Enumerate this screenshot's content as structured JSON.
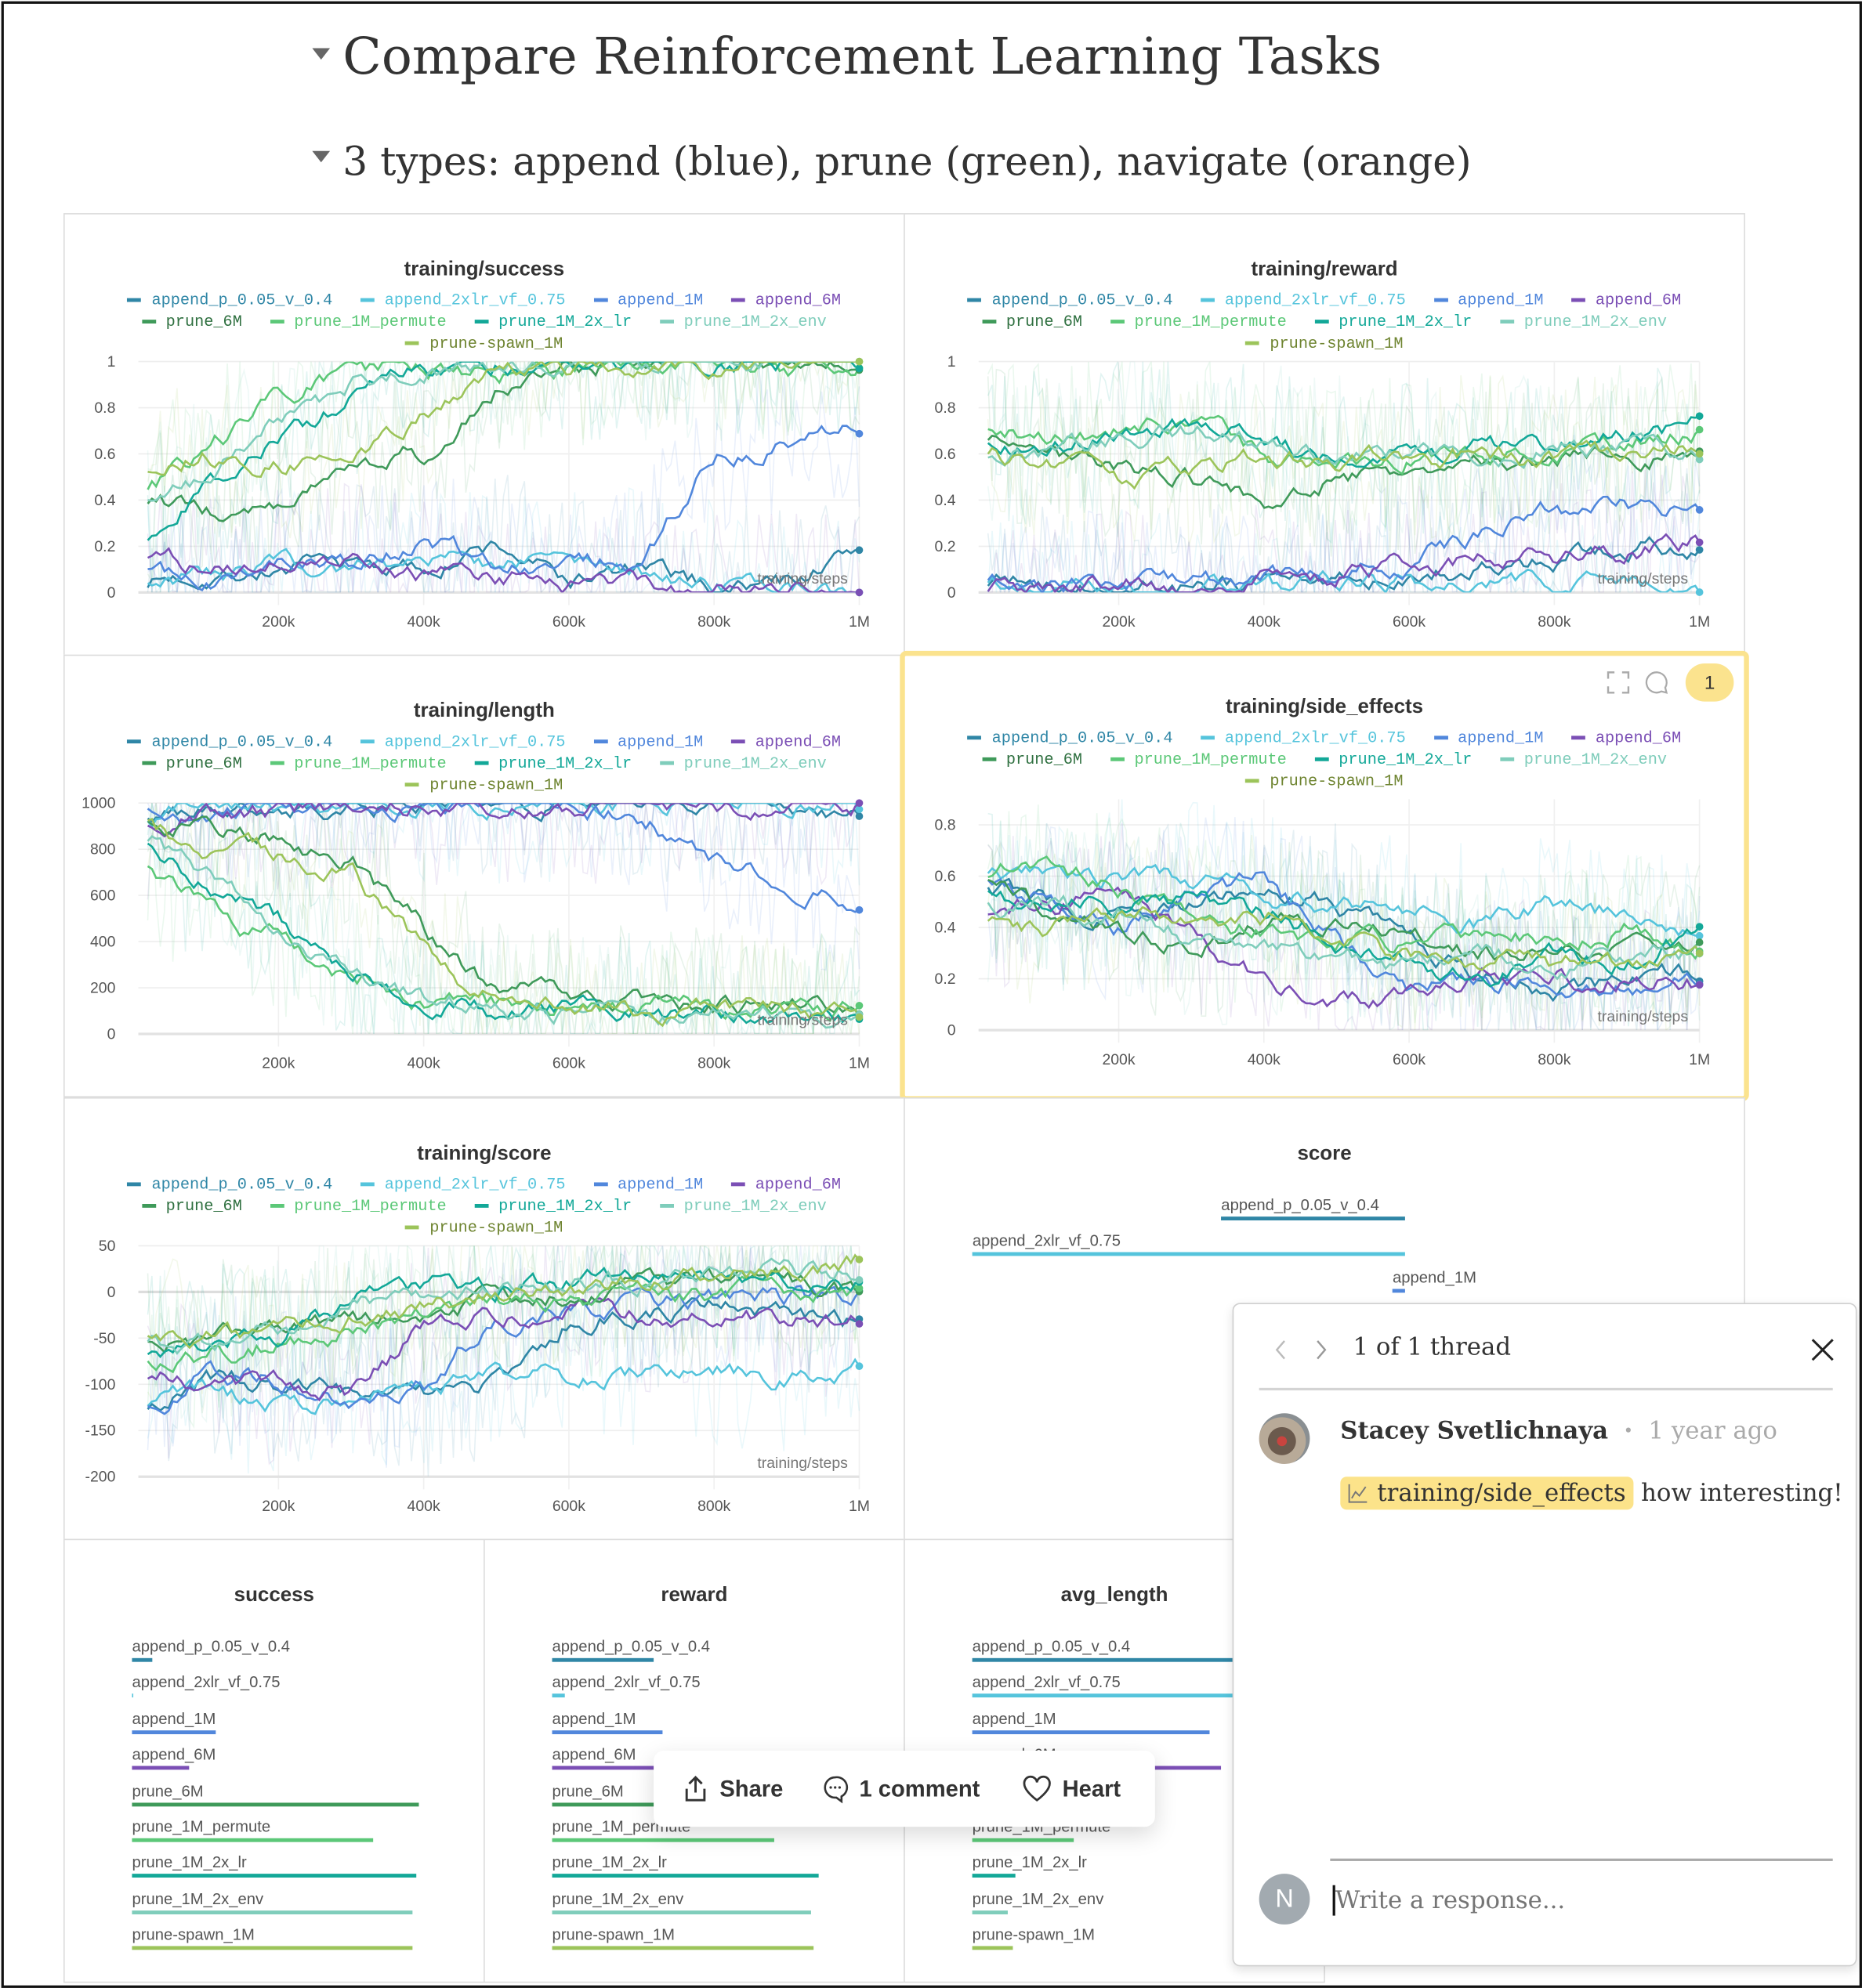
{
  "headings": {
    "h1": "Compare Reinforcement Learning Tasks",
    "h2": "3 types: append (blue), prune (green), navigate (orange)"
  },
  "series": [
    {
      "name": "append_p_0.05_v_0.4",
      "color": "#2f86a6"
    },
    {
      "name": "append_2xlr_vf_0.75",
      "color": "#55c4dc"
    },
    {
      "name": "append_1M",
      "color": "#5187dc"
    },
    {
      "name": "append_6M",
      "color": "#7b4fb5"
    },
    {
      "name": "prune_6M",
      "color": "#3f9a5a"
    },
    {
      "name": "prune_1M_permute",
      "color": "#5cc878"
    },
    {
      "name": "prune_1M_2x_lr",
      "color": "#13a898"
    },
    {
      "name": "prune_1M_2x_env",
      "color": "#7fcdbb"
    },
    {
      "name": "prune-spawn_1M",
      "color": "#9cc45a"
    }
  ],
  "chart_data": [
    {
      "type": "line",
      "title": "training/success",
      "xlabel": "training/steps",
      "x": [
        20000,
        100000,
        200000,
        300000,
        400000,
        500000,
        600000,
        700000,
        800000,
        900000,
        1000000
      ],
      "xticks": [
        200000,
        400000,
        600000,
        800000,
        1000000
      ],
      "xtick_labels": [
        "200k",
        "400k",
        "600k",
        "800k",
        "1M"
      ],
      "xlim": [
        0,
        1000000
      ],
      "ylim": [
        0,
        1
      ],
      "yticks": [
        0,
        0.2,
        0.4,
        0.6,
        0.8,
        1
      ],
      "grid": true,
      "legend": "top",
      "series": [
        {
          "name": "append_p_0.05_v_0.4",
          "values": [
            0.05,
            0.08,
            0.1,
            0.12,
            0.1,
            0.2,
            0.05,
            0.1,
            0.02,
            0.05,
            0.18
          ]
        },
        {
          "name": "append_2xlr_vf_0.75",
          "values": [
            0.05,
            0.06,
            0.1,
            0.1,
            0.15,
            0.1,
            0.15,
            0.1,
            0.05,
            0.02,
            0.01
          ]
        },
        {
          "name": "append_1M",
          "values": [
            0.08,
            0.05,
            0.12,
            0.1,
            0.2,
            0.15,
            0.1,
            0.15,
            0.6,
            0.65,
            0.7
          ]
        },
        {
          "name": "append_6M",
          "values": [
            0.15,
            0.1,
            0.12,
            0.15,
            0.07,
            0.05,
            0.03,
            0.05,
            0.01,
            0.02,
            0.02
          ]
        },
        {
          "name": "prune_6M",
          "values": [
            0.4,
            0.35,
            0.4,
            0.55,
            0.6,
            0.9,
            0.98,
            1,
            1,
            1,
            1
          ]
        },
        {
          "name": "prune_1M_permute",
          "values": [
            0.45,
            0.6,
            0.85,
            0.95,
            0.98,
            0.95,
            0.97,
            0.97,
            0.98,
            0.97,
            1
          ]
        },
        {
          "name": "prune_1M_2x_lr",
          "values": [
            0.2,
            0.45,
            0.65,
            0.85,
            0.98,
            1,
            1,
            1,
            1,
            1,
            1
          ]
        },
        {
          "name": "prune_1M_2x_env",
          "values": [
            0.4,
            0.5,
            0.75,
            0.9,
            0.97,
            1,
            1,
            1,
            1,
            1,
            1
          ]
        },
        {
          "name": "prune-spawn_1M",
          "values": [
            0.5,
            0.6,
            0.55,
            0.6,
            0.75,
            0.95,
            0.98,
            0.98,
            0.99,
            1,
            1
          ]
        }
      ]
    },
    {
      "type": "line",
      "title": "training/reward",
      "xlabel": "training/steps",
      "x": [
        20000,
        100000,
        200000,
        300000,
        400000,
        500000,
        600000,
        700000,
        800000,
        900000,
        1000000
      ],
      "xticks": [
        200000,
        400000,
        600000,
        800000,
        1000000
      ],
      "xtick_labels": [
        "200k",
        "400k",
        "600k",
        "800k",
        "1M"
      ],
      "xlim": [
        0,
        1000000
      ],
      "ylim": [
        0,
        1
      ],
      "yticks": [
        0,
        0.2,
        0.4,
        0.6,
        0.8,
        1
      ],
      "grid": true,
      "legend": "top",
      "series": [
        {
          "name": "append_p_0.05_v_0.4",
          "values": [
            0.05,
            0.02,
            0.03,
            0.03,
            0.04,
            0.06,
            0.1,
            0.12,
            0.15,
            0.2,
            0.2
          ]
        },
        {
          "name": "append_2xlr_vf_0.75",
          "values": [
            0.05,
            0.02,
            0.02,
            0.02,
            0.03,
            0.03,
            0.04,
            0.03,
            0.03,
            0.03,
            0.03
          ]
        },
        {
          "name": "append_1M",
          "values": [
            0.08,
            0.03,
            0.03,
            0.04,
            0.05,
            0.08,
            0.15,
            0.25,
            0.35,
            0.38,
            0.33
          ]
        },
        {
          "name": "append_6M",
          "values": [
            0.03,
            0.02,
            0.03,
            0.03,
            0.05,
            0.08,
            0.12,
            0.15,
            0.15,
            0.18,
            0.22
          ]
        },
        {
          "name": "prune_6M",
          "values": [
            0.65,
            0.6,
            0.55,
            0.5,
            0.38,
            0.5,
            0.5,
            0.55,
            0.6,
            0.6,
            0.62
          ]
        },
        {
          "name": "prune_1M_permute",
          "values": [
            0.7,
            0.65,
            0.7,
            0.72,
            0.6,
            0.55,
            0.6,
            0.62,
            0.6,
            0.65,
            0.7
          ]
        },
        {
          "name": "prune_1M_2x_lr",
          "values": [
            0.65,
            0.6,
            0.7,
            0.72,
            0.65,
            0.55,
            0.6,
            0.62,
            0.65,
            0.68,
            0.72
          ]
        },
        {
          "name": "prune_1M_2x_env",
          "values": [
            0.6,
            0.6,
            0.68,
            0.7,
            0.65,
            0.6,
            0.58,
            0.6,
            0.62,
            0.62,
            0.6
          ]
        },
        {
          "name": "prune-spawn_1M",
          "values": [
            0.6,
            0.55,
            0.48,
            0.55,
            0.6,
            0.55,
            0.58,
            0.6,
            0.58,
            0.62,
            0.62
          ]
        }
      ]
    },
    {
      "type": "line",
      "title": "training/length",
      "xlabel": "training/steps",
      "x": [
        20000,
        100000,
        200000,
        300000,
        400000,
        500000,
        600000,
        700000,
        800000,
        900000,
        1000000
      ],
      "xticks": [
        200000,
        400000,
        600000,
        800000,
        1000000
      ],
      "xtick_labels": [
        "200k",
        "400k",
        "600k",
        "800k",
        "1M"
      ],
      "xlim": [
        0,
        1000000
      ],
      "ylim": [
        0,
        1000
      ],
      "yticks": [
        0,
        200,
        400,
        600,
        800,
        1000
      ],
      "grid": true,
      "legend": "top",
      "series": [
        {
          "name": "append_p_0.05_v_0.4",
          "values": [
            950,
            980,
            990,
            990,
            995,
            990,
            995,
            990,
            995,
            990,
            940
          ]
        },
        {
          "name": "append_2xlr_vf_0.75",
          "values": [
            900,
            980,
            990,
            985,
            990,
            995,
            995,
            990,
            995,
            995,
            990
          ]
        },
        {
          "name": "append_1M",
          "values": [
            950,
            960,
            970,
            980,
            985,
            990,
            980,
            950,
            750,
            650,
            600
          ]
        },
        {
          "name": "append_6M",
          "values": [
            900,
            950,
            970,
            980,
            985,
            990,
            990,
            995,
            990,
            995,
            995
          ]
        },
        {
          "name": "prune_6M",
          "values": [
            950,
            900,
            850,
            750,
            450,
            200,
            150,
            130,
            120,
            120,
            150
          ]
        },
        {
          "name": "prune_1M_permute",
          "values": [
            700,
            550,
            400,
            250,
            150,
            120,
            110,
            110,
            120,
            110,
            100
          ]
        },
        {
          "name": "prune_1M_2x_lr",
          "values": [
            800,
            650,
            500,
            250,
            150,
            100,
            90,
            90,
            85,
            90,
            80
          ]
        },
        {
          "name": "prune_1M_2x_env",
          "values": [
            850,
            700,
            450,
            280,
            150,
            100,
            90,
            85,
            80,
            80,
            80
          ]
        },
        {
          "name": "prune-spawn_1M",
          "values": [
            900,
            800,
            780,
            700,
            350,
            150,
            120,
            100,
            90,
            110,
            100
          ]
        }
      ]
    },
    {
      "type": "line",
      "title": "training/side_effects",
      "xlabel": "training/steps",
      "x": [
        20000,
        100000,
        200000,
        300000,
        400000,
        500000,
        600000,
        700000,
        800000,
        900000,
        1000000
      ],
      "xticks": [
        200000,
        400000,
        600000,
        800000,
        1000000
      ],
      "xtick_labels": [
        "200k",
        "400k",
        "600k",
        "800k",
        "1M"
      ],
      "xlim": [
        0,
        1000000
      ],
      "ylim": [
        0,
        0.9
      ],
      "yticks": [
        0,
        0.2,
        0.4,
        0.6,
        0.8
      ],
      "grid": true,
      "legend": "top",
      "series": [
        {
          "name": "append_p_0.05_v_0.4",
          "values": [
            0.55,
            0.5,
            0.45,
            0.5,
            0.55,
            0.5,
            0.35,
            0.2,
            0.15,
            0.2,
            0.22
          ]
        },
        {
          "name": "append_2xlr_vf_0.75",
          "values": [
            0.6,
            0.6,
            0.6,
            0.58,
            0.55,
            0.5,
            0.45,
            0.42,
            0.48,
            0.45,
            0.4
          ]
        },
        {
          "name": "append_1M",
          "values": [
            0.6,
            0.5,
            0.4,
            0.55,
            0.58,
            0.35,
            0.15,
            0.2,
            0.18,
            0.15,
            0.22
          ]
        },
        {
          "name": "append_6M",
          "values": [
            0.45,
            0.5,
            0.5,
            0.4,
            0.2,
            0.1,
            0.15,
            0.2,
            0.2,
            0.2,
            0.18
          ]
        },
        {
          "name": "prune_6M",
          "values": [
            0.6,
            0.45,
            0.38,
            0.35,
            0.4,
            0.45,
            0.35,
            0.3,
            0.3,
            0.35,
            0.35
          ]
        },
        {
          "name": "prune_1M_permute",
          "values": [
            0.6,
            0.65,
            0.55,
            0.45,
            0.38,
            0.35,
            0.33,
            0.38,
            0.35,
            0.4,
            0.32
          ]
        },
        {
          "name": "prune_1M_2x_lr",
          "values": [
            0.55,
            0.45,
            0.48,
            0.5,
            0.45,
            0.35,
            0.25,
            0.2,
            0.3,
            0.25,
            0.38
          ]
        },
        {
          "name": "prune_1M_2x_env",
          "values": [
            0.5,
            0.5,
            0.45,
            0.35,
            0.3,
            0.3,
            0.25,
            0.3,
            0.25,
            0.3,
            0.3
          ]
        },
        {
          "name": "prune-spawn_1M",
          "values": [
            0.45,
            0.4,
            0.48,
            0.45,
            0.45,
            0.35,
            0.3,
            0.28,
            0.25,
            0.25,
            0.28
          ]
        }
      ]
    },
    {
      "type": "line",
      "title": "training/score",
      "xlabel": "training/steps",
      "x": [
        20000,
        100000,
        200000,
        300000,
        400000,
        500000,
        600000,
        700000,
        800000,
        900000,
        1000000
      ],
      "xticks": [
        200000,
        400000,
        600000,
        800000,
        1000000
      ],
      "xtick_labels": [
        "200k",
        "400k",
        "600k",
        "800k",
        "1M"
      ],
      "xlim": [
        0,
        1000000
      ],
      "ylim": [
        -200,
        50
      ],
      "yticks": [
        -200,
        -150,
        -100,
        -50,
        0,
        50
      ],
      "grid": true,
      "legend": "top",
      "series": [
        {
          "name": "append_p_0.05_v_0.4",
          "values": [
            -120,
            -95,
            -100,
            -105,
            -115,
            -100,
            -30,
            -20,
            -15,
            -20,
            -35
          ]
        },
        {
          "name": "append_2xlr_vf_0.75",
          "values": [
            -120,
            -110,
            -120,
            -110,
            -105,
            -95,
            -90,
            -90,
            -85,
            -90,
            -80
          ]
        },
        {
          "name": "append_1M",
          "values": [
            -130,
            -90,
            -95,
            -110,
            -100,
            -30,
            -20,
            -15,
            -10,
            -10,
            -5
          ]
        },
        {
          "name": "append_6M",
          "values": [
            -90,
            -100,
            -100,
            -110,
            -40,
            -20,
            -20,
            -25,
            -25,
            -25,
            -30
          ]
        },
        {
          "name": "prune_6M",
          "values": [
            -50,
            -55,
            -40,
            -35,
            -30,
            -10,
            0,
            5,
            10,
            10,
            5
          ]
        },
        {
          "name": "prune_1M_permute",
          "values": [
            -80,
            -70,
            -55,
            -40,
            -20,
            -10,
            -10,
            -5,
            -5,
            0,
            0
          ]
        },
        {
          "name": "prune_1M_2x_lr",
          "values": [
            -70,
            -55,
            -45,
            -10,
            5,
            5,
            10,
            15,
            15,
            15,
            10
          ]
        },
        {
          "name": "prune_1M_2x_env",
          "values": [
            -60,
            -55,
            -50,
            -5,
            0,
            5,
            10,
            15,
            15,
            20,
            25
          ]
        },
        {
          "name": "prune-spawn_1M",
          "values": [
            -45,
            -45,
            -50,
            -25,
            -15,
            -5,
            5,
            15,
            20,
            20,
            35
          ]
        }
      ]
    },
    {
      "type": "bar",
      "title": "score",
      "orientation": "horizontal",
      "categories": [
        "append_p_0.05_v_0.4",
        "append_2xlr_vf_0.75",
        "append_1M"
      ],
      "values": [
        -34,
        -80,
        -2.3
      ]
    },
    {
      "type": "bar",
      "title": "success",
      "orientation": "horizontal",
      "categories": [
        "append_p_0.05_v_0.4",
        "append_2xlr_vf_0.75",
        "append_1M",
        "append_6M",
        "prune_6M",
        "prune_1M_permute",
        "prune_1M_2x_lr",
        "prune_1M_2x_env",
        "prune-spawn_1M"
      ],
      "values": [
        0.07,
        0.005,
        0.29,
        0.2,
        1.0,
        0.84,
        0.99,
        0.98,
        0.98
      ]
    },
    {
      "type": "bar",
      "title": "reward",
      "orientation": "horizontal",
      "categories": [
        "append_p_0.05_v_0.4",
        "append_2xlr_vf_0.75",
        "append_1M",
        "append_6M",
        "prune_6M",
        "prune_1M_permute",
        "prune_1M_2x_lr",
        "prune_1M_2x_env",
        "prune-spawn_1M"
      ],
      "values": [
        0.275,
        0.034,
        0.297,
        0.3,
        0.62,
        0.6,
        0.72,
        0.7,
        0.706
      ]
    },
    {
      "type": "bar",
      "title": "avg_length",
      "orientation": "horizontal",
      "categories": [
        "append_p_0.05_v_0.4",
        "append_2xlr_vf_0.75",
        "append_1M",
        "append_6M",
        "prune_6M",
        "prune_1M_permute",
        "prune_1M_2x_lr",
        "prune_1M_2x_env",
        "prune-spawn_1M"
      ],
      "values": [
        990,
        990,
        900,
        940,
        300,
        385,
        165,
        137,
        154
      ]
    }
  ],
  "panel_tools": {
    "comment_count": "1",
    "highlight_color": "#fbe38e"
  },
  "action_bar": {
    "share": "Share",
    "comments": "1 comment",
    "heart": "Heart"
  },
  "comment_thread": {
    "title": "1 of 1 thread",
    "author": "Stacey Svetlichnaya",
    "separator": "•",
    "time": "1 year ago",
    "tag": "training/side_effects",
    "message": "how interesting!",
    "reply_avatar": "N",
    "reply_placeholder": "Write a response..."
  }
}
